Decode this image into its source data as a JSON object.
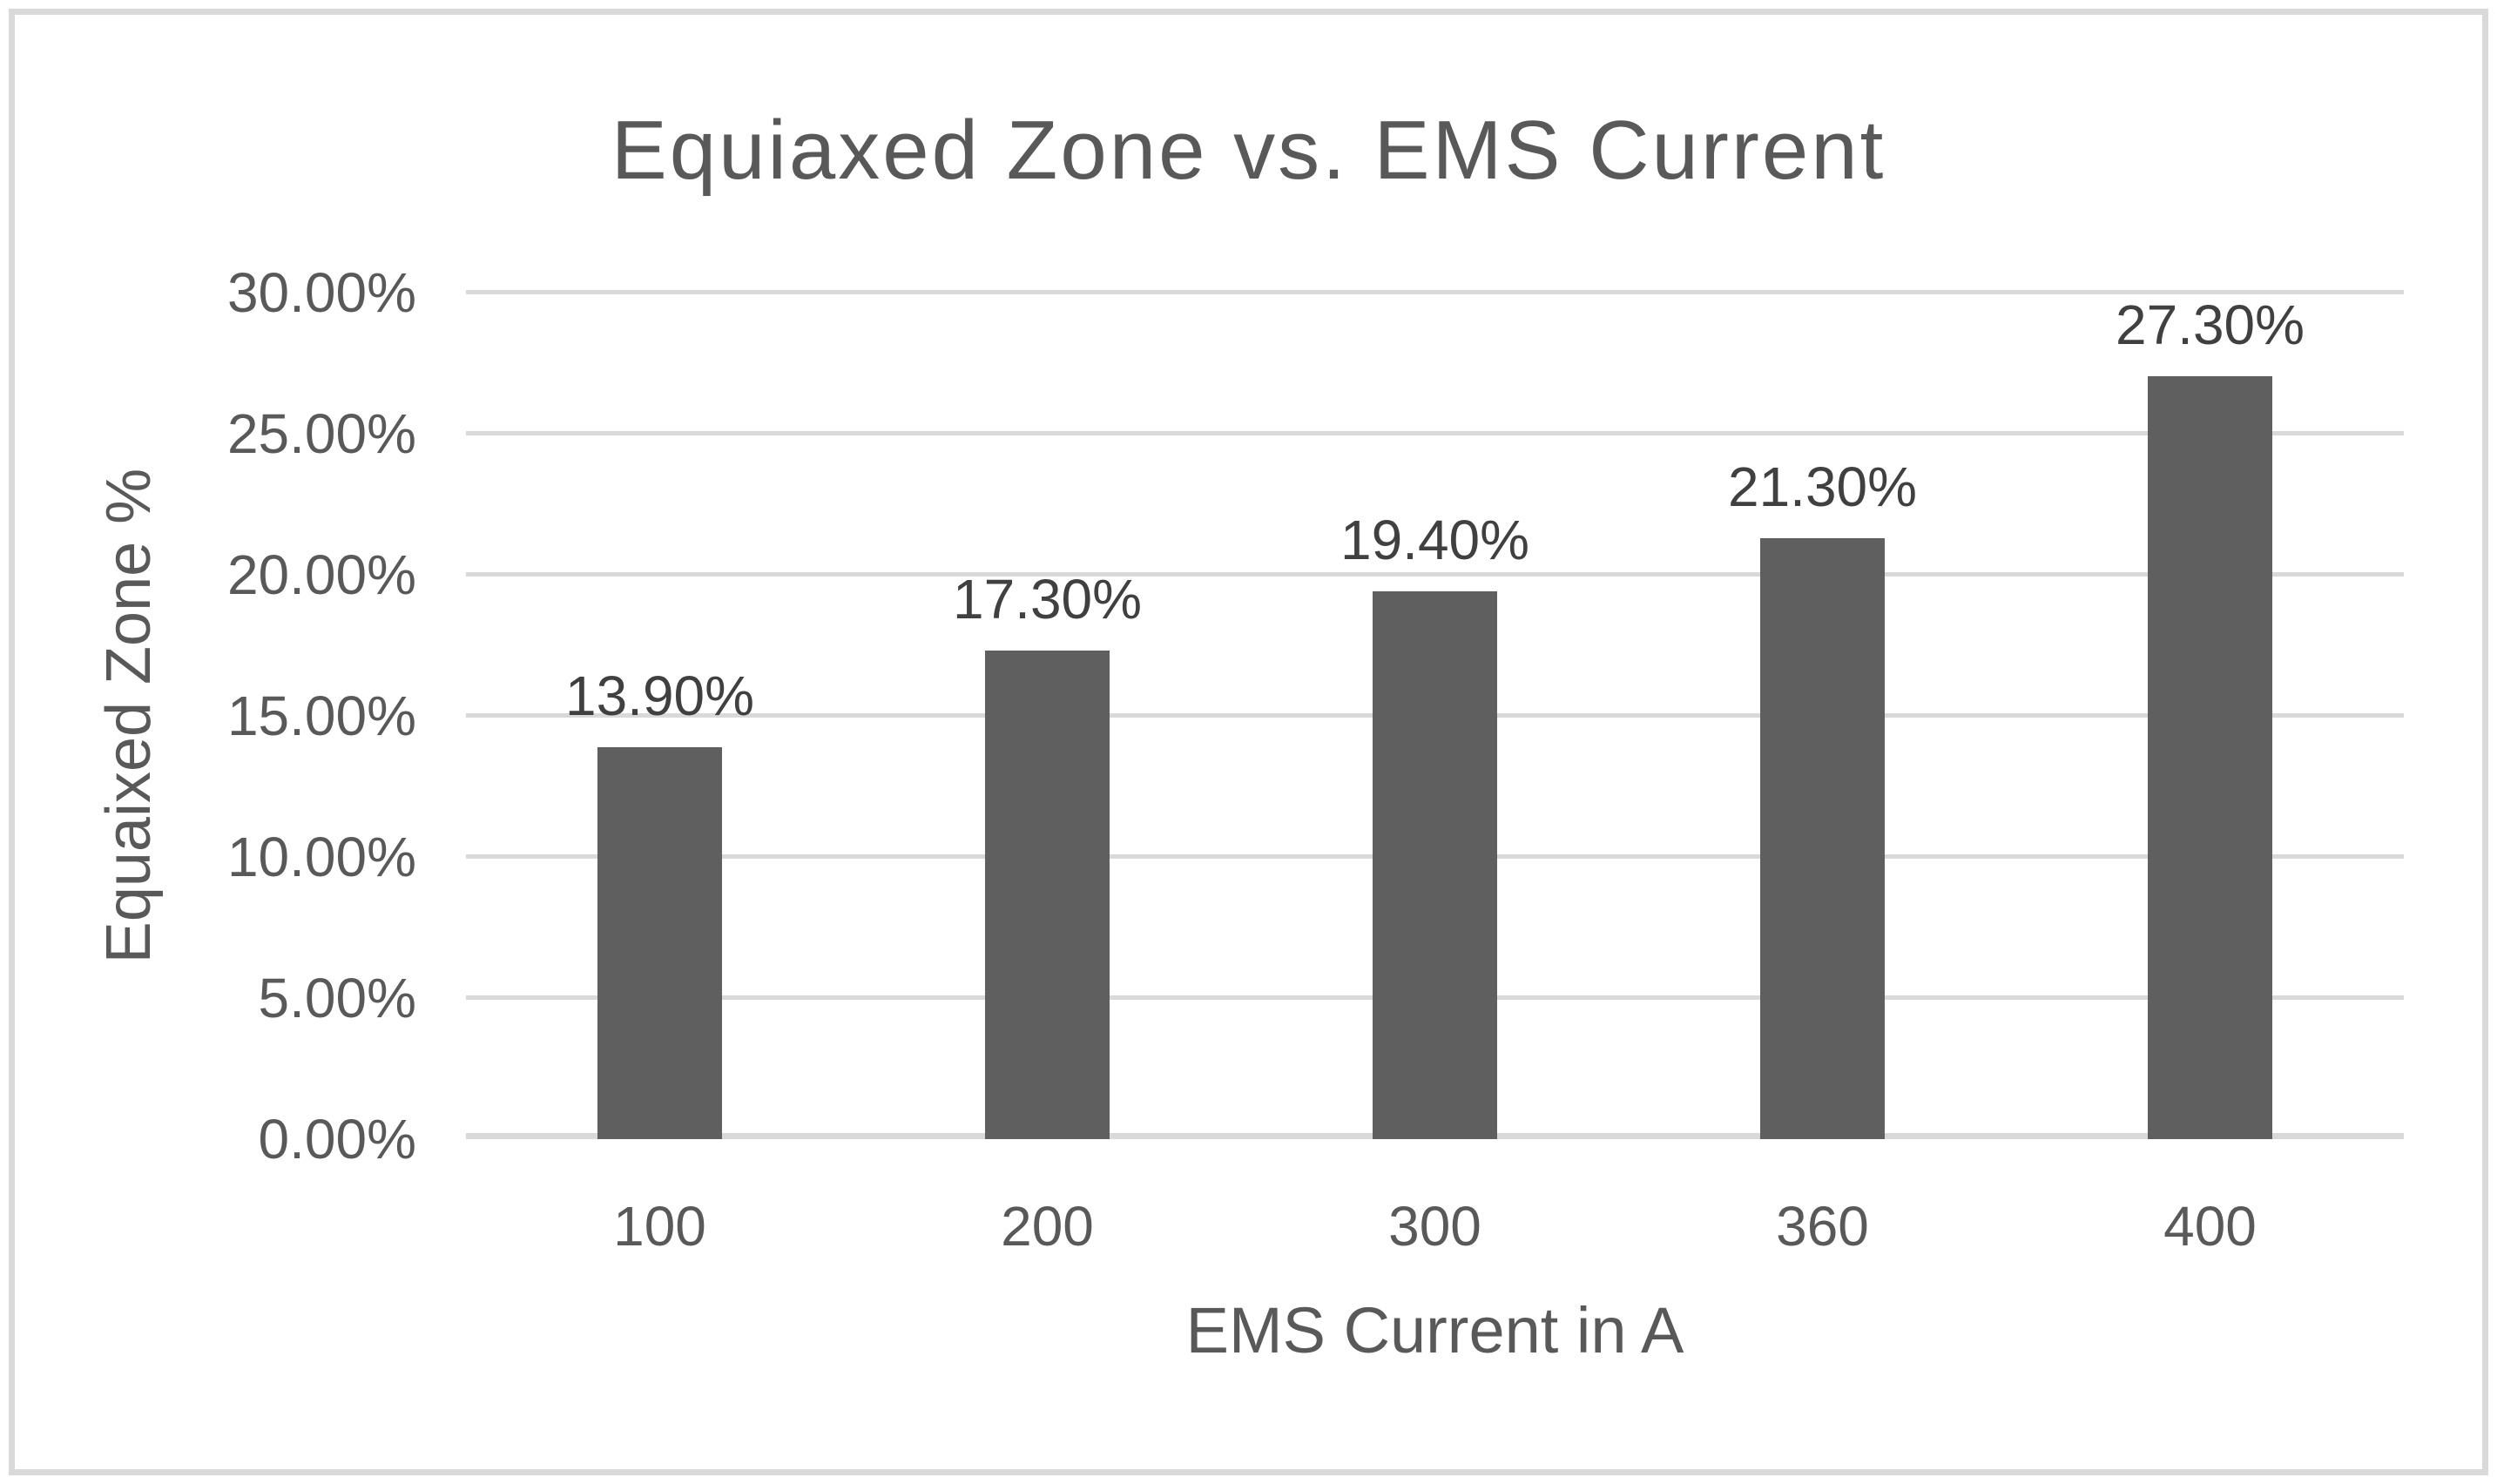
{
  "chart_data": {
    "type": "bar",
    "title": "Equiaxed Zone vs. EMS Current",
    "xlabel": "EMS Current in A",
    "ylabel": "Equaixed Zone %",
    "categories": [
      "100",
      "200",
      "300",
      "360",
      "400"
    ],
    "values": [
      13.9,
      17.3,
      19.4,
      21.3,
      27.3
    ],
    "data_labels": [
      "13.90%",
      "17.30%",
      "19.40%",
      "21.30%",
      "27.30%"
    ],
    "ylim": [
      0,
      30
    ],
    "yticks": [
      {
        "value": 0,
        "label": "0.00%"
      },
      {
        "value": 5,
        "label": "5.00%"
      },
      {
        "value": 10,
        "label": "10.00%"
      },
      {
        "value": 15,
        "label": "15.00%"
      },
      {
        "value": 20,
        "label": "20.00%"
      },
      {
        "value": 25,
        "label": "25.00%"
      },
      {
        "value": 30,
        "label": "30.00%"
      }
    ],
    "grid": "horizontal",
    "legend": "none",
    "colors": {
      "bar": "#5f5f5f",
      "gridline": "#d9d9d9",
      "axis_line": "#d9d9d9",
      "text": "#595959",
      "frame_border": "#d9d9d9",
      "background": "#ffffff"
    }
  }
}
